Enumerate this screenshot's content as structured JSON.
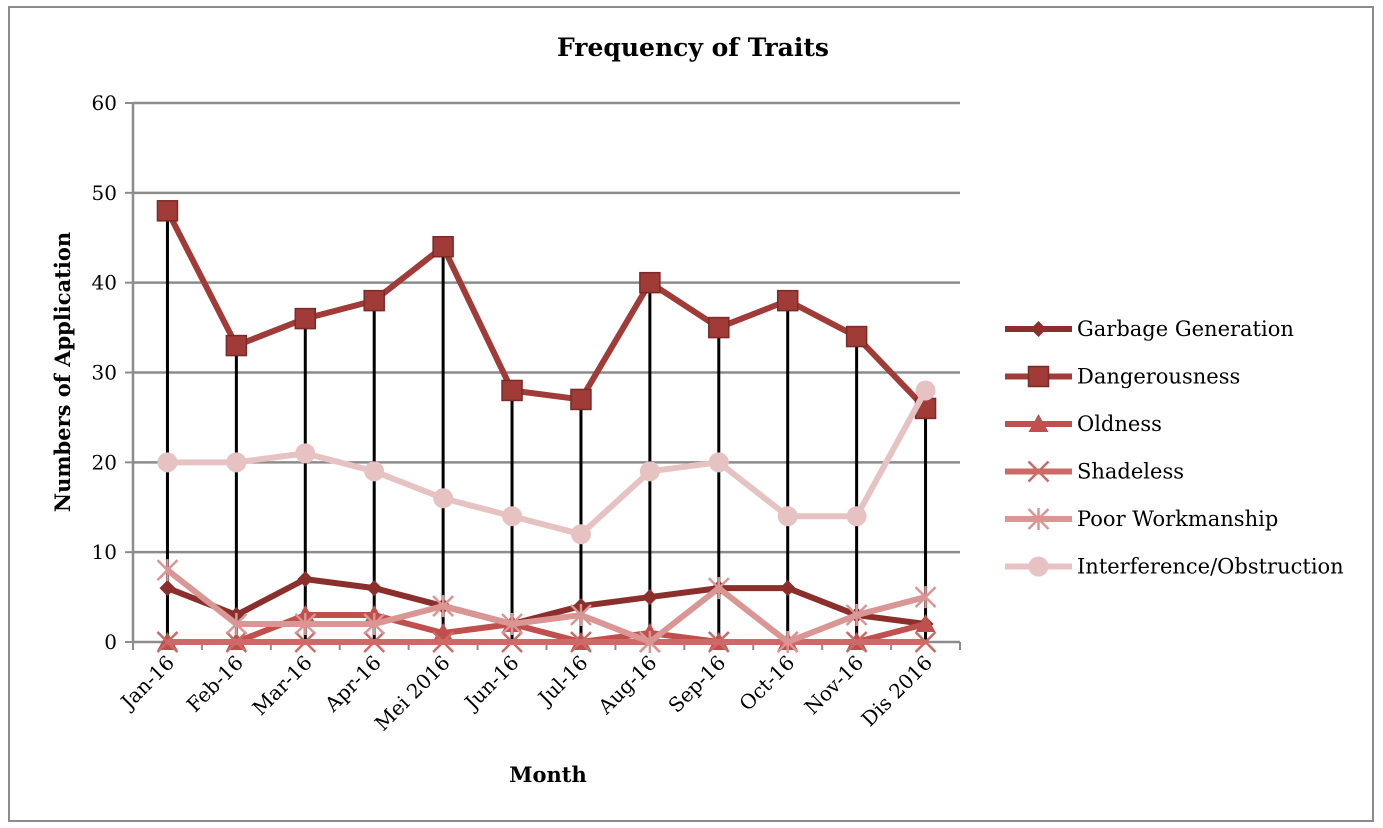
{
  "chart_data": {
    "type": "line",
    "title": "Frequency of Traits",
    "xlabel": "Month",
    "ylabel": "Numbers of Application",
    "ylim": [
      0,
      60
    ],
    "yticks": [
      0,
      10,
      20,
      30,
      40,
      50,
      60
    ],
    "grid": "horizontal",
    "legend_position": "right",
    "categories": [
      "Jan-16",
      "Feb-16",
      "Mar-16",
      "Apr-16",
      "Mei 2016",
      "Jun-16",
      "Jul-16",
      "Aug-16",
      "Sep-16",
      "Oct-16",
      "Nov-16",
      "Dis 2016"
    ],
    "drop_lines": true,
    "series": [
      {
        "name": "Garbage Generation",
        "color": "#8b2f2c",
        "marker": "diamond",
        "values": [
          6,
          3,
          7,
          6,
          4,
          2,
          4,
          5,
          6,
          6,
          3,
          2
        ]
      },
      {
        "name": "Dangerousness",
        "color": "#a03b38",
        "marker": "square",
        "values": [
          48,
          33,
          36,
          38,
          44,
          28,
          27,
          40,
          35,
          38,
          34,
          26
        ]
      },
      {
        "name": "Oldness",
        "color": "#c0504d",
        "marker": "triangle",
        "values": [
          0,
          0,
          3,
          3,
          1,
          2,
          0,
          1,
          0,
          0,
          0,
          2
        ]
      },
      {
        "name": "Shadeless",
        "color": "#cd6a67",
        "marker": "x",
        "values": [
          0,
          0,
          0,
          0,
          0,
          0,
          0,
          0,
          0,
          0,
          0,
          0
        ]
      },
      {
        "name": "Poor Workmanship",
        "color": "#d99694",
        "marker": "star",
        "values": [
          8,
          2,
          2,
          2,
          4,
          2,
          3,
          0,
          6,
          0,
          3,
          5
        ]
      },
      {
        "name": "Interference/Obstruction",
        "color": "#e6c3c2",
        "marker": "circle",
        "values": [
          20,
          20,
          21,
          19,
          16,
          14,
          12,
          19,
          20,
          14,
          14,
          28
        ]
      }
    ]
  }
}
